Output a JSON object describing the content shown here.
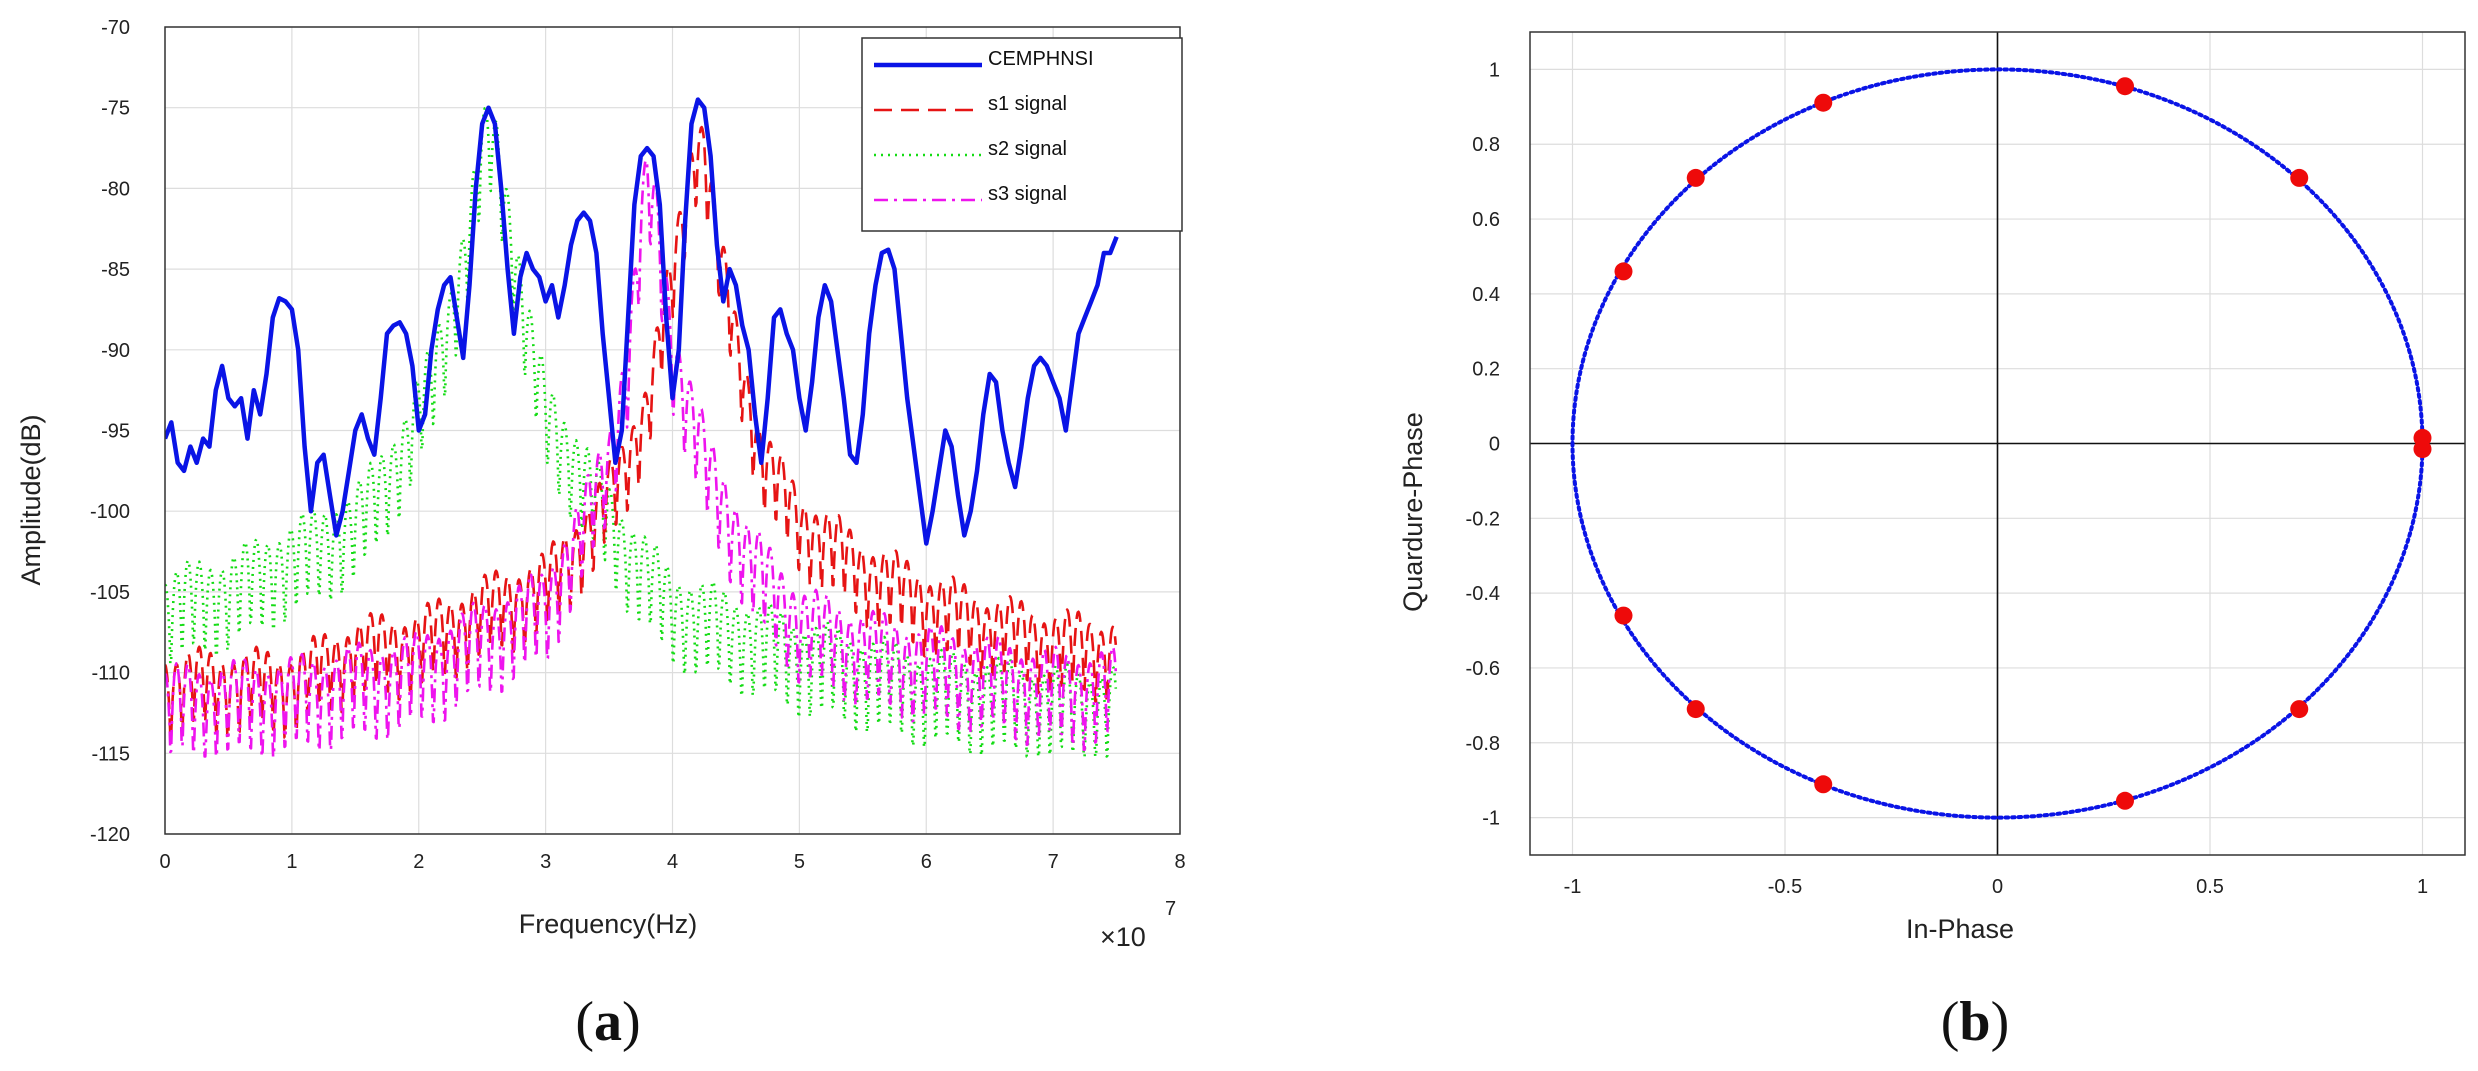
{
  "chart_data": [
    {
      "type": "line",
      "panel_label": "(a)",
      "panel_letter": "a",
      "xlabel": "Frequency(Hz)",
      "ylabel": "Amplitude(dB)",
      "x_exponent_base": "×10",
      "x_exponent_power": "7",
      "xlim": [
        0,
        8
      ],
      "ylim": [
        -120,
        -70
      ],
      "xticks": [
        0,
        1,
        2,
        3,
        4,
        5,
        6,
        7,
        8
      ],
      "yticks": [
        -70,
        -75,
        -80,
        -85,
        -90,
        -95,
        -100,
        -105,
        -110,
        -115,
        -120
      ],
      "grid": true,
      "legend_position": "top-right",
      "series": [
        {
          "name": "CEMPHNSI",
          "color": "#0a14e6",
          "style": "solid",
          "points": [
            [
              0,
              -95.5
            ],
            [
              0.05,
              -94.5
            ],
            [
              0.1,
              -97
            ],
            [
              0.15,
              -97.5
            ],
            [
              0.2,
              -96
            ],
            [
              0.25,
              -97
            ],
            [
              0.3,
              -95.5
            ],
            [
              0.35,
              -96
            ],
            [
              0.4,
              -92.5
            ],
            [
              0.45,
              -91
            ],
            [
              0.5,
              -93
            ],
            [
              0.55,
              -93.5
            ],
            [
              0.6,
              -93
            ],
            [
              0.65,
              -95.5
            ],
            [
              0.7,
              -92.5
            ],
            [
              0.75,
              -94
            ],
            [
              0.8,
              -91.5
            ],
            [
              0.85,
              -88
            ],
            [
              0.9,
              -86.8
            ],
            [
              0.95,
              -87
            ],
            [
              1.0,
              -87.5
            ],
            [
              1.05,
              -90
            ],
            [
              1.1,
              -96
            ],
            [
              1.15,
              -100
            ],
            [
              1.2,
              -97
            ],
            [
              1.25,
              -96.5
            ],
            [
              1.3,
              -99
            ],
            [
              1.35,
              -101.5
            ],
            [
              1.4,
              -100
            ],
            [
              1.45,
              -97.5
            ],
            [
              1.5,
              -95
            ],
            [
              1.55,
              -94
            ],
            [
              1.6,
              -95.5
            ],
            [
              1.65,
              -96.5
            ],
            [
              1.7,
              -93
            ],
            [
              1.75,
              -89
            ],
            [
              1.8,
              -88.5
            ],
            [
              1.85,
              -88.3
            ],
            [
              1.9,
              -89
            ],
            [
              1.95,
              -91
            ],
            [
              2.0,
              -95
            ],
            [
              2.05,
              -94
            ],
            [
              2.1,
              -90
            ],
            [
              2.15,
              -87.5
            ],
            [
              2.2,
              -86
            ],
            [
              2.25,
              -85.5
            ],
            [
              2.3,
              -88
            ],
            [
              2.35,
              -90.5
            ],
            [
              2.4,
              -86
            ],
            [
              2.45,
              -80
            ],
            [
              2.5,
              -76
            ],
            [
              2.55,
              -75
            ],
            [
              2.6,
              -76
            ],
            [
              2.65,
              -80
            ],
            [
              2.7,
              -85
            ],
            [
              2.75,
              -89
            ],
            [
              2.8,
              -85.5
            ],
            [
              2.85,
              -84
            ],
            [
              2.9,
              -85
            ],
            [
              2.95,
              -85.5
            ],
            [
              3.0,
              -87
            ],
            [
              3.05,
              -86
            ],
            [
              3.1,
              -88
            ],
            [
              3.15,
              -86
            ],
            [
              3.2,
              -83.5
            ],
            [
              3.25,
              -82
            ],
            [
              3.3,
              -81.5
            ],
            [
              3.35,
              -82
            ],
            [
              3.4,
              -84
            ],
            [
              3.45,
              -89
            ],
            [
              3.5,
              -93
            ],
            [
              3.55,
              -97
            ],
            [
              3.6,
              -95
            ],
            [
              3.65,
              -88
            ],
            [
              3.7,
              -81
            ],
            [
              3.75,
              -78
            ],
            [
              3.8,
              -77.5
            ],
            [
              3.85,
              -78
            ],
            [
              3.9,
              -81
            ],
            [
              3.95,
              -88
            ],
            [
              4.0,
              -93
            ],
            [
              4.05,
              -90
            ],
            [
              4.1,
              -82
            ],
            [
              4.15,
              -76
            ],
            [
              4.2,
              -74.5
            ],
            [
              4.25,
              -75
            ],
            [
              4.3,
              -78
            ],
            [
              4.35,
              -83.5
            ],
            [
              4.4,
              -87
            ],
            [
              4.45,
              -85
            ],
            [
              4.5,
              -86
            ],
            [
              4.55,
              -88.5
            ],
            [
              4.6,
              -90
            ],
            [
              4.65,
              -94
            ],
            [
              4.7,
              -97
            ],
            [
              4.75,
              -93
            ],
            [
              4.8,
              -88
            ],
            [
              4.85,
              -87.5
            ],
            [
              4.9,
              -89
            ],
            [
              4.95,
              -90
            ],
            [
              5.0,
              -93
            ],
            [
              5.05,
              -95
            ],
            [
              5.1,
              -92
            ],
            [
              5.15,
              -88
            ],
            [
              5.2,
              -86
            ],
            [
              5.25,
              -87
            ],
            [
              5.3,
              -90
            ],
            [
              5.35,
              -93
            ],
            [
              5.4,
              -96.5
            ],
            [
              5.45,
              -97
            ],
            [
              5.5,
              -94
            ],
            [
              5.55,
              -89
            ],
            [
              5.6,
              -86
            ],
            [
              5.65,
              -84
            ],
            [
              5.7,
              -83.8
            ],
            [
              5.75,
              -85
            ],
            [
              5.8,
              -89
            ],
            [
              5.85,
              -93
            ],
            [
              5.9,
              -96
            ],
            [
              5.95,
              -99
            ],
            [
              6.0,
              -102
            ],
            [
              6.05,
              -100
            ],
            [
              6.1,
              -97.5
            ],
            [
              6.15,
              -95
            ],
            [
              6.2,
              -96
            ],
            [
              6.25,
              -99
            ],
            [
              6.3,
              -101.5
            ],
            [
              6.35,
              -100
            ],
            [
              6.4,
              -97.5
            ],
            [
              6.45,
              -94
            ],
            [
              6.5,
              -91.5
            ],
            [
              6.55,
              -92
            ],
            [
              6.6,
              -95
            ],
            [
              6.65,
              -97
            ],
            [
              6.7,
              -98.5
            ],
            [
              6.75,
              -96
            ],
            [
              6.8,
              -93
            ],
            [
              6.85,
              -91
            ],
            [
              6.9,
              -90.5
            ],
            [
              6.95,
              -91
            ],
            [
              7.0,
              -92
            ],
            [
              7.05,
              -93
            ],
            [
              7.1,
              -95
            ],
            [
              7.15,
              -92
            ],
            [
              7.2,
              -89
            ],
            [
              7.25,
              -88
            ],
            [
              7.3,
              -87
            ],
            [
              7.35,
              -86
            ],
            [
              7.4,
              -84
            ],
            [
              7.45,
              -84
            ],
            [
              7.5,
              -83
            ]
          ]
        },
        {
          "name": "s1 signal",
          "color": "#e61414",
          "style": "dashed",
          "trend": [
            [
              0,
              -109
            ],
            [
              1,
              -109
            ],
            [
              1.5,
              -107
            ],
            [
              2,
              -106.5
            ],
            [
              2.5,
              -104.5
            ],
            [
              3,
              -103
            ],
            [
              3.4,
              -99
            ],
            [
              3.6,
              -96
            ],
            [
              3.8,
              -92
            ],
            [
              4.0,
              -84
            ],
            [
              4.15,
              -77
            ],
            [
              4.2,
              -75.5
            ],
            [
              4.25,
              -76
            ],
            [
              4.35,
              -82
            ],
            [
              4.5,
              -88
            ],
            [
              4.7,
              -95
            ],
            [
              5,
              -99
            ],
            [
              5.5,
              -102
            ],
            [
              6,
              -104
            ],
            [
              6.5,
              -105.5
            ],
            [
              7,
              -106.5
            ],
            [
              7.5,
              -107
            ]
          ],
          "depth": 6
        },
        {
          "name": "s2 signal",
          "color": "#14dc14",
          "style": "dotted",
          "trend": [
            [
              0,
              -104
            ],
            [
              0.5,
              -103
            ],
            [
              1,
              -101
            ],
            [
              1.5,
              -99
            ],
            [
              1.9,
              -94
            ],
            [
              2.1,
              -90
            ],
            [
              2.25,
              -86
            ],
            [
              2.4,
              -81
            ],
            [
              2.5,
              -76
            ],
            [
              2.55,
              -75
            ],
            [
              2.62,
              -76
            ],
            [
              2.75,
              -82
            ],
            [
              2.85,
              -87
            ],
            [
              3,
              -92
            ],
            [
              3.3,
              -96
            ],
            [
              3.6,
              -100
            ],
            [
              4,
              -104
            ],
            [
              5,
              -107
            ],
            [
              6,
              -109
            ],
            [
              7,
              -110
            ],
            [
              7.5,
              -110
            ]
          ],
          "depth": 7
        },
        {
          "name": "s3 signal",
          "color": "#ee14ee",
          "style": "dashdot",
          "trend": [
            [
              0,
              -110
            ],
            [
              1,
              -109.5
            ],
            [
              2,
              -108
            ],
            [
              3,
              -104
            ],
            [
              3.3,
              -99
            ],
            [
              3.5,
              -95
            ],
            [
              3.65,
              -89
            ],
            [
              3.75,
              -81
            ],
            [
              3.8,
              -78
            ],
            [
              3.87,
              -80
            ],
            [
              4.0,
              -88
            ],
            [
              4.1,
              -91
            ],
            [
              4.3,
              -96
            ],
            [
              4.6,
              -101
            ],
            [
              5,
              -105
            ],
            [
              5.5,
              -106.5
            ],
            [
              6,
              -107.5
            ],
            [
              7,
              -109
            ],
            [
              7.5,
              -109
            ]
          ],
          "depth": 7
        }
      ]
    },
    {
      "type": "scatter",
      "panel_label": "(b)",
      "panel_letter": "b",
      "xlabel": "In-Phase",
      "ylabel": "Quardure-Phase",
      "xlim": [
        -1.1,
        1.1
      ],
      "ylim": [
        -1.1,
        1.1
      ],
      "xticks": [
        -1,
        -0.5,
        0,
        0.5,
        1
      ],
      "xtick_labels": [
        "-1",
        "-0.5",
        "0",
        "0.5",
        "1"
      ],
      "yticks": [
        1,
        0.8,
        0.6,
        0.4,
        0.2,
        0,
        -0.2,
        -0.4,
        -0.6,
        -0.8,
        -1
      ],
      "ytick_labels": [
        "1",
        "0.8",
        "0.6",
        "0.4",
        "0.2",
        "0",
        "-0.2",
        "-0.4",
        "-0.6",
        "-0.8",
        "-1"
      ],
      "grid": true,
      "unit_circle_color": "#0a14e6",
      "point_color": "#ee0a0a",
      "points": [
        [
          1,
          0.015
        ],
        [
          1,
          -0.015
        ],
        [
          0.71,
          0.71
        ],
        [
          0.3,
          0.955
        ],
        [
          -0.41,
          0.911
        ],
        [
          -0.71,
          0.71
        ],
        [
          -0.88,
          0.46
        ],
        [
          -0.88,
          -0.46
        ],
        [
          -0.71,
          -0.71
        ],
        [
          -0.41,
          -0.911
        ],
        [
          0.3,
          -0.955
        ],
        [
          0.71,
          -0.71
        ]
      ]
    }
  ]
}
